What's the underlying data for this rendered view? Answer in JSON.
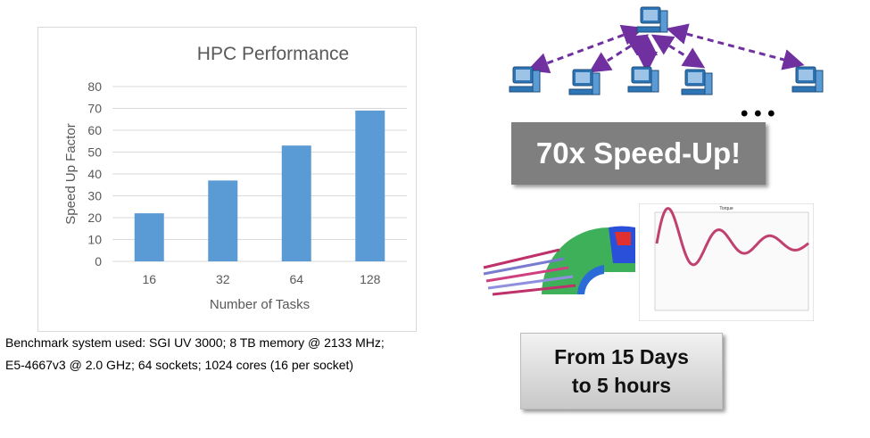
{
  "chart_data": {
    "type": "bar",
    "title": "HPC Performance",
    "xlabel": "Number of Tasks",
    "ylabel": "Speed Up Factor",
    "categories": [
      "16",
      "32",
      "64",
      "128"
    ],
    "values": [
      22,
      37,
      53,
      69
    ],
    "ylim": [
      0,
      80
    ],
    "yticks": [
      0,
      10,
      20,
      30,
      40,
      50,
      60,
      70,
      80
    ],
    "grid": true,
    "bar_color": "#5b9bd5"
  },
  "caption": {
    "line1": "Benchmark system used: SGI UV 3000; 8 TB memory @ 2133 MHz;",
    "line2": "E5-4667v3 @ 2.0 GHz;  64 sockets; 1024  cores (16 per socket)"
  },
  "network": {
    "arrow_color": "#7030a0",
    "icon": "computer-icon",
    "ellipsis": "• • •"
  },
  "speedup": {
    "label": "70x Speed-Up!"
  },
  "torque_plot": {
    "title": "Torque"
  },
  "duration": {
    "line1": "From 15 Days",
    "line2": "to 5 hours"
  }
}
